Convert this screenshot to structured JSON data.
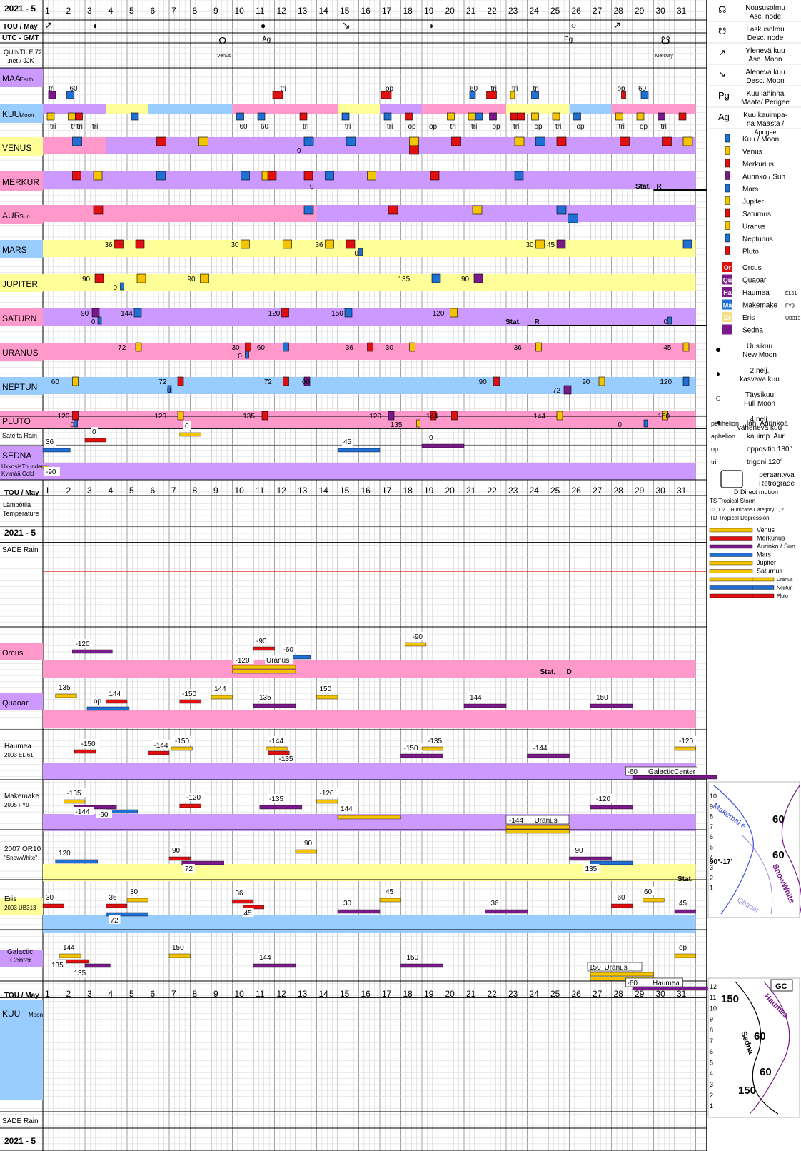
{
  "header": {
    "title": "2021 - 5",
    "month": "TOU / May",
    "utc": "UTC - GMT",
    "credit1": "QUINTILE 72",
    "credit2": ".net / JJK",
    "days": [
      "1",
      "2",
      "3",
      "4",
      "5",
      "6",
      "7",
      "8",
      "9",
      "10",
      "11",
      "12",
      "13",
      "14",
      "15",
      "16",
      "17",
      "18",
      "19",
      "20",
      "21",
      "22",
      "23",
      "24",
      "25",
      "26",
      "27",
      "28",
      "29",
      "30",
      "31"
    ]
  },
  "rows": {
    "maa": {
      "label": "MAA",
      "sub": "Earth"
    },
    "kuu": {
      "label": "KUU",
      "sub": "Moon"
    },
    "venus": {
      "label": "VENUS"
    },
    "merkur": {
      "label": "MERKUR"
    },
    "aur": {
      "label": "AUR",
      "sub": "Sun"
    },
    "mars": {
      "label": "MARS"
    },
    "jupiter": {
      "label": "JUPITER"
    },
    "saturn": {
      "label": "SATURN"
    },
    "uranus": {
      "label": "URANUS"
    },
    "neptun": {
      "label": "NEPTUN"
    },
    "pluto": {
      "label": "PLUTO"
    },
    "sateita": {
      "label": "Sateita Rain"
    },
    "sedna": {
      "label": "SEDNA"
    },
    "ukkosia": {
      "label": "UkkosiaThunder"
    },
    "kylma": {
      "label": "Kylmää Cold"
    },
    "lampotila": {
      "label": "Lämpötila",
      "sub": "Temperature"
    },
    "sade": {
      "label": "SADE Rain"
    },
    "orcus": {
      "label": "Orcus"
    },
    "quaoar": {
      "label": "Quaoar"
    },
    "haumea": {
      "label": "Haumea",
      "sub": "2003 EL 61"
    },
    "makemake": {
      "label": "Makemake",
      "sub": "2005 FY9"
    },
    "snowwhite": {
      "label": "2007 OR10",
      "sub": "\"SnowWhite\""
    },
    "eris": {
      "label": "Eris",
      "sub": "2003 UB313"
    },
    "gc": {
      "label": "Galactic",
      "sub": "Center"
    },
    "kuu2": {
      "label": "KUU",
      "sub": "Moon"
    },
    "sade2": {
      "label": "SADE  Rain"
    }
  },
  "moon_events": {
    "asc_node": "Ω",
    "venus_tag": "Venus",
    "ag": "Ag",
    "pg": "Pg",
    "desc_node": "☋",
    "mercury_tag": "Mercury"
  },
  "aspects_top": [
    "tri",
    "60",
    "tri",
    "op",
    "60",
    "tri",
    "tri",
    "tri",
    "op",
    "60"
  ],
  "aspects_bottom": [
    "tri",
    "tri",
    "tri",
    "tri",
    "60",
    "60",
    "tri",
    "tri",
    "tri",
    "op",
    "op",
    "tri",
    "tri",
    "op",
    "tri",
    "op",
    "tri",
    "op",
    "tri",
    "op",
    "tri"
  ],
  "planet_values": {
    "mars": [
      "36",
      "30",
      "36",
      "0",
      "30",
      "45"
    ],
    "jupiter": [
      "90",
      "0",
      "90",
      "135",
      "90"
    ],
    "saturn": [
      "90",
      "0",
      "144",
      "120",
      "150",
      "120",
      "Stat.",
      "R",
      "0"
    ],
    "uranus": [
      "72",
      "30",
      "0",
      "60",
      "36",
      "30",
      "36",
      "45"
    ],
    "neptun": [
      "60",
      "72",
      "0",
      "72",
      "60",
      "90",
      "90",
      "72",
      "120"
    ],
    "pluto": [
      "120",
      "0",
      "120",
      "135",
      "120",
      "135",
      "144",
      "144",
      "0",
      "150"
    ],
    "venus0": "0",
    "merkur0": "0",
    "merkur_stat": "Stat.",
    "merkur_r": "R"
  },
  "sedna_values": [
    "36",
    "0",
    "0",
    "45",
    "0",
    "-90"
  ],
  "tno_values": {
    "orcus": [
      "-120",
      "-90",
      "-60",
      "-120",
      "Uranus",
      "-90",
      "Stat.",
      "D"
    ],
    "quaoar": [
      "135",
      "144",
      "op",
      "-150",
      "144",
      "135",
      "150",
      "144",
      "150"
    ],
    "haumea": [
      "-150",
      "-144",
      "-150",
      "-144",
      "-135",
      "-150",
      "-135",
      "-144",
      "-120",
      "-60",
      "GalacticCenter"
    ],
    "makemake": [
      "-135",
      "-144",
      "-90",
      "-120",
      "-135",
      "-120",
      "144",
      "-144",
      "Uranus",
      "-120"
    ],
    "snowwhite": [
      "120",
      "90",
      "72",
      "90",
      "90",
      "135",
      "Stat."
    ],
    "eris": [
      "30",
      "36",
      "30",
      "72",
      "36",
      "45",
      "30",
      "45",
      "36",
      "60",
      "60",
      "45"
    ],
    "gc": [
      "144",
      "150",
      "135",
      "150",
      "144",
      "150",
      "135",
      "Uranus",
      "-60",
      "Haumea",
      "op"
    ]
  },
  "legend": {
    "items": [
      {
        "sym": "☊",
        "text": "Noususolmu",
        "text2": "Asc. node"
      },
      {
        "sym": "☋",
        "text": "Laskusolmu",
        "text2": "Desc. node"
      },
      {
        "sym": "↗",
        "text": "Ylenevä kuu",
        "text2": "Asc. Moon"
      },
      {
        "sym": "↘",
        "text": "Aleneva kuu",
        "text2": "Desc. Moon"
      },
      {
        "sym": "Pg",
        "text": "Kuu lähinnä",
        "text2": "Maata/ Perigee"
      },
      {
        "sym": "Ag",
        "text": "Kuu kauimpa-",
        "text2": "na Maasta /",
        "text3": "Apogee"
      }
    ],
    "planets": [
      {
        "name": "Kuu / Moon",
        "color": "#1f6fd4"
      },
      {
        "name": "Venus",
        "color": "#f5c400"
      },
      {
        "name": "Merkurius",
        "color": "#e01010"
      },
      {
        "name": "Aurinko / Sun",
        "color": "#7a1a8a"
      },
      {
        "name": "Mars",
        "color": "#1f6fd4"
      },
      {
        "name": "Jupiter",
        "color": "#f5c400"
      },
      {
        "name": "Saturnus",
        "color": "#e01010"
      },
      {
        "name": "Uranus",
        "color": "#f5c400"
      },
      {
        "name": "Neptunus",
        "color": "#1f6fd4"
      },
      {
        "name": "Pluto",
        "color": "#e01010"
      }
    ],
    "tnos": [
      {
        "abbr": "Or",
        "name": "Orcus",
        "color": "#e01010"
      },
      {
        "abbr": "Qu",
        "name": "Quaoar",
        "color": "#7a1a8a"
      },
      {
        "abbr": "Ha",
        "name": "Haumea",
        "sub": "EL61",
        "color": "#7a1a8a"
      },
      {
        "abbr": "Ma",
        "name": "Makemake",
        "sub": "FY9",
        "color": "#1f6fd4"
      },
      {
        "abbr": "Er",
        "name": "Eris",
        "sub": "UB313",
        "color": "#f5e08a"
      },
      {
        "abbr": "",
        "name": "Sedna",
        "color": "#7a1a8a"
      }
    ],
    "phases": [
      {
        "text": "Uusikuu",
        "text2": "New Moon"
      },
      {
        "text": "2.nelj.",
        "text2": "kasvava kuu"
      },
      {
        "text": "Täysikuu",
        "text2": "Full Moon"
      },
      {
        "text": "4.nelj.",
        "text2": "vähenevä kuu"
      }
    ],
    "perihelion": "perihelion",
    "perihelion_txt": "läh. Aurinkoa",
    "aphelion": "aphelion",
    "aphelion_txt": "kauimp. Aur.",
    "op": "op",
    "op_txt": "oppositio 180°",
    "tri": "tri",
    "tri_txt": "trigoni  120°",
    "retro1": "peraantyva",
    "retro2": "Retrograde",
    "direct": "D Direct motion",
    "ts": "TS  Tropical Storm",
    "hc": "C1, C2...  Hurricane  Category 1, 2",
    "td": "TD  Tropical Depression",
    "lines": [
      "Venus",
      "Merkurius",
      "Aurinko / Sun",
      "Mars",
      "Jupiter",
      "Saturnus",
      "Uranus",
      "Neptun",
      "Pluto"
    ]
  },
  "mini1": {
    "ticks": [
      "10",
      "9",
      "8",
      "7",
      "6",
      "5",
      "4",
      "3",
      "2",
      "1"
    ],
    "labels": [
      "Makemake",
      "60",
      "60",
      "90°-17'",
      "SnowWhite",
      "Qbaoar"
    ]
  },
  "mini2": {
    "ticks": [
      "12",
      "11",
      "10",
      "9",
      "8",
      "7",
      "6",
      "5",
      "4",
      "3",
      "2",
      "1"
    ],
    "labels": [
      "150",
      "GC",
      "Haumea",
      "60",
      "60",
      "Sedna",
      "150"
    ]
  },
  "chart_data": {
    "type": "table",
    "title": "2021 - 5",
    "x_label": "TOU / May",
    "days": 31
  }
}
